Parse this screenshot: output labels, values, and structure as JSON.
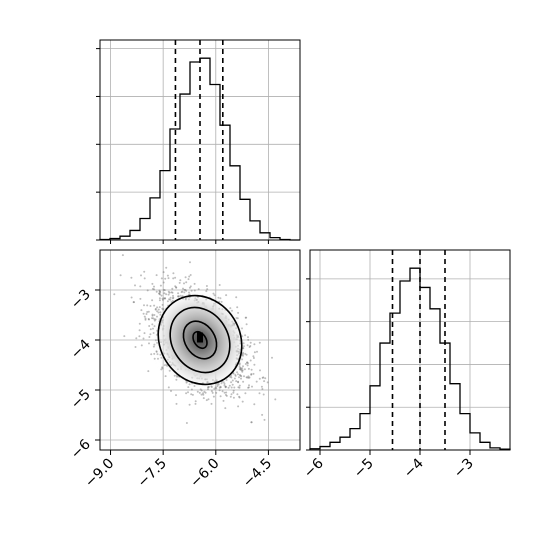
{
  "chart_data": {
    "type": "corner",
    "title": "",
    "grid": true,
    "parameters": [
      {
        "name": "",
        "range": [
          -9.3,
          -3.6
        ],
        "ticks": [
          -9.0,
          -7.5,
          -6.0,
          -4.5
        ],
        "tick_labels": [
          "−9.0",
          "−7.5",
          "−6.0",
          "−4.5"
        ],
        "quantiles": [
          -7.15,
          -6.45,
          -5.8
        ],
        "hist": {
          "bin_edges": [
            -9.3,
            -9.015,
            -8.73,
            -8.445,
            -8.16,
            -7.875,
            -7.59,
            -7.305,
            -7.02,
            -6.735,
            -6.45,
            -6.165,
            -5.88,
            -5.595,
            -5.31,
            -5.025,
            -4.74,
            -4.455,
            -4.17,
            -3.885,
            -3.6
          ],
          "counts": [
            1,
            3,
            8,
            20,
            45,
            88,
            145,
            232,
            305,
            372,
            380,
            325,
            240,
            155,
            85,
            40,
            15,
            5,
            1,
            0
          ]
        }
      },
      {
        "name": "",
        "range": [
          -6.2,
          -2.2
        ],
        "ticks": [
          -6,
          -5,
          -4,
          -3
        ],
        "tick_labels": [
          "−6",
          "−5",
          "−4",
          "−3"
        ],
        "quantiles": [
          -4.55,
          -4.0,
          -3.5
        ],
        "hist": {
          "bin_edges": [
            -6.2,
            -6.0,
            -5.8,
            -5.6,
            -5.4,
            -5.2,
            -5.0,
            -4.8,
            -4.6,
            -4.4,
            -4.2,
            -4.0,
            -3.8,
            -3.6,
            -3.4,
            -3.2,
            -3.0,
            -2.8,
            -2.6,
            -2.4,
            -2.2
          ],
          "counts": [
            3,
            8,
            18,
            30,
            50,
            85,
            150,
            250,
            320,
            395,
            425,
            380,
            330,
            250,
            155,
            85,
            40,
            18,
            5,
            2
          ]
        }
      }
    ],
    "density_2d": {
      "center": [
        -6.45,
        -4.0
      ],
      "peak": [
        -6.45,
        -3.95
      ],
      "contour_levels": [
        0.5,
        1.0,
        1.5,
        2.0
      ]
    }
  }
}
